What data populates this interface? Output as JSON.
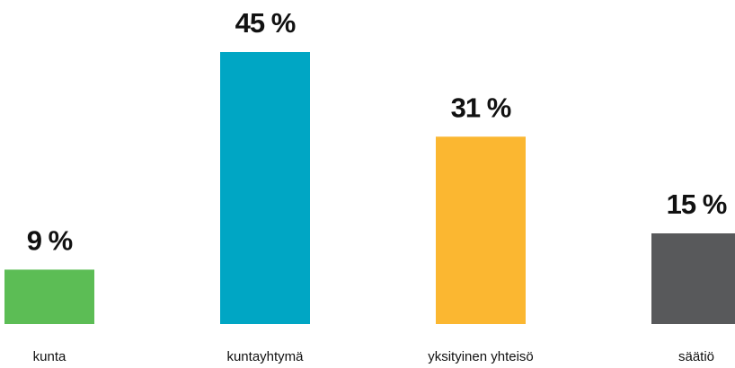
{
  "chart_data": {
    "type": "bar",
    "categories": [
      "kunta",
      "kuntayhtymä",
      "yksityinen yhteisö",
      "säätiö"
    ],
    "values": [
      9,
      45,
      31,
      15
    ],
    "value_labels": [
      "9 %",
      "45 %",
      "31 %",
      "15 %"
    ],
    "colors": [
      "#5cbd55",
      "#00a6c4",
      "#fbb731",
      "#58595b"
    ]
  }
}
